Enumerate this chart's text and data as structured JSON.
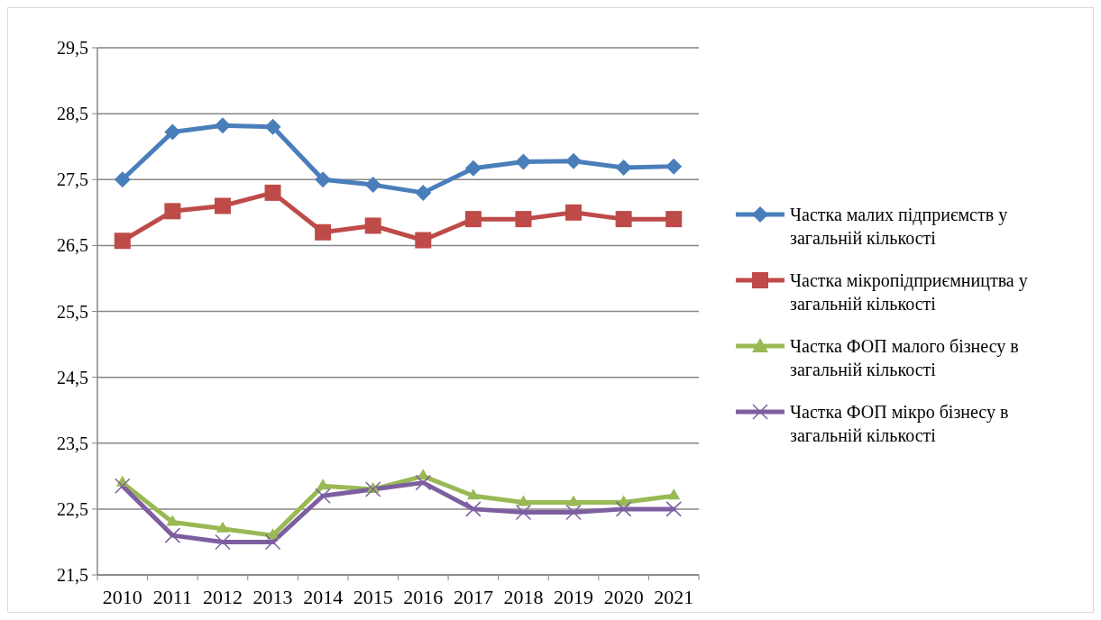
{
  "chart_data": {
    "type": "line",
    "categories": [
      "2010",
      "2011",
      "2012",
      "2013",
      "2014",
      "2015",
      "2016",
      "2017",
      "2018",
      "2019",
      "2020",
      "2021"
    ],
    "ylim": [
      21.5,
      29.5
    ],
    "yticks": [
      {
        "value": 21.5,
        "label": "21,5"
      },
      {
        "value": 22.5,
        "label": "22,5"
      },
      {
        "value": 23.5,
        "label": "23,5"
      },
      {
        "value": 24.5,
        "label": "24,5"
      },
      {
        "value": 25.5,
        "label": "25,5"
      },
      {
        "value": 26.5,
        "label": "26,5"
      },
      {
        "value": 27.5,
        "label": "27,5"
      },
      {
        "value": 28.5,
        "label": "28,5"
      },
      {
        "value": 29.5,
        "label": "29,5"
      }
    ],
    "grid": "y",
    "legend": "right",
    "series": [
      {
        "name": "Частка малих підприємств у загальній кількості",
        "color": "#4a7ebb",
        "marker": "diamond",
        "values": [
          27.5,
          28.22,
          28.32,
          28.3,
          27.5,
          27.42,
          27.3,
          27.67,
          27.77,
          27.78,
          27.68,
          27.7
        ]
      },
      {
        "name": "Частка мікропідприємництва у загальній кількості",
        "color": "#be4b48",
        "marker": "square",
        "values": [
          26.57,
          27.02,
          27.1,
          27.3,
          26.7,
          26.8,
          26.58,
          26.9,
          26.9,
          27.0,
          26.9,
          26.9
        ]
      },
      {
        "name": "Частка ФОП малого бізнесу в загальній кількості",
        "color": "#98b954",
        "marker": "triangle",
        "values": [
          22.9,
          22.3,
          22.2,
          22.1,
          22.85,
          22.8,
          23.0,
          22.7,
          22.6,
          22.6,
          22.6,
          22.7
        ]
      },
      {
        "name": "Частка ФОП мікро бізнесу в загальній кількості",
        "color": "#7d5fa0",
        "marker": "cross",
        "values": [
          22.85,
          22.1,
          22.0,
          22.0,
          22.7,
          22.8,
          22.9,
          22.5,
          22.45,
          22.45,
          22.5,
          22.5
        ]
      }
    ]
  }
}
